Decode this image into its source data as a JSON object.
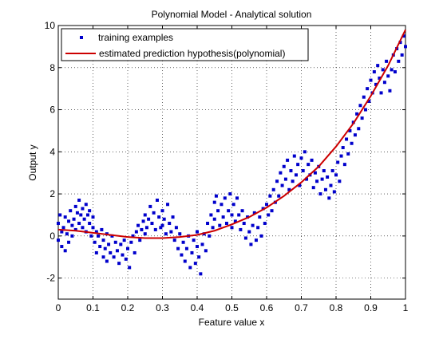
{
  "chart_data": {
    "type": "scatter",
    "title": "Polynomial Model - Analytical solution",
    "xlabel": "Feature value x",
    "ylabel": "Output y",
    "xlim": [
      0,
      1
    ],
    "ylim": [
      -3,
      10
    ],
    "xticks": [
      0,
      0.1,
      0.2,
      0.3,
      0.4,
      0.5,
      0.6,
      0.7,
      0.8,
      0.9,
      1
    ],
    "xtick_labels": [
      "0",
      "0.1",
      "0.2",
      "0.3",
      "0.4",
      "0.5",
      "0.6",
      "0.7",
      "0.8",
      "0.9",
      "1"
    ],
    "yticks": [
      -2,
      0,
      2,
      4,
      6,
      8,
      10
    ],
    "ytick_labels": [
      "-2",
      "0",
      "2",
      "4",
      "6",
      "8",
      "10"
    ],
    "grid": true,
    "legend_position": "top-left",
    "colors": {
      "scatter": "#0000cc",
      "curve": "#cc0000",
      "axis": "#000000"
    },
    "series": [
      {
        "name": "training examples",
        "kind": "scatter",
        "points": [
          [
            0.0,
            0.6
          ],
          [
            0.0,
            -0.2
          ],
          [
            0.005,
            1.0
          ],
          [
            0.01,
            0.2
          ],
          [
            0.01,
            -0.5
          ],
          [
            0.015,
            0.4
          ],
          [
            0.02,
            -0.7
          ],
          [
            0.02,
            0.9
          ],
          [
            0.025,
            0.1
          ],
          [
            0.03,
            0.7
          ],
          [
            0.03,
            -0.3
          ],
          [
            0.035,
            1.2
          ],
          [
            0.04,
            0.5
          ],
          [
            0.04,
            0.0
          ],
          [
            0.045,
            0.8
          ],
          [
            0.05,
            1.4
          ],
          [
            0.05,
            0.3
          ],
          [
            0.055,
            1.1
          ],
          [
            0.06,
            0.6
          ],
          [
            0.06,
            1.7
          ],
          [
            0.065,
            1.0
          ],
          [
            0.07,
            0.4
          ],
          [
            0.07,
            1.3
          ],
          [
            0.075,
            0.8
          ],
          [
            0.08,
            1.5
          ],
          [
            0.08,
            0.2
          ],
          [
            0.085,
            1.0
          ],
          [
            0.09,
            0.6
          ],
          [
            0.09,
            1.2
          ],
          [
            0.095,
            0.0
          ],
          [
            0.1,
            0.4
          ],
          [
            0.1,
            0.9
          ],
          [
            0.105,
            -0.3
          ],
          [
            0.11,
            0.2
          ],
          [
            0.11,
            -0.8
          ],
          [
            0.115,
            0.0
          ],
          [
            0.12,
            -0.5
          ],
          [
            0.125,
            0.3
          ],
          [
            0.13,
            -1.0
          ],
          [
            0.13,
            -0.2
          ],
          [
            0.135,
            -0.6
          ],
          [
            0.14,
            0.1
          ],
          [
            0.14,
            -1.2
          ],
          [
            0.145,
            -0.4
          ],
          [
            0.15,
            -0.8
          ],
          [
            0.155,
            0.0
          ],
          [
            0.16,
            -1.0
          ],
          [
            0.165,
            -0.3
          ],
          [
            0.17,
            -0.7
          ],
          [
            0.175,
            -1.3
          ],
          [
            0.18,
            -0.4
          ],
          [
            0.185,
            -0.9
          ],
          [
            0.19,
            -0.2
          ],
          [
            0.195,
            -1.1
          ],
          [
            0.2,
            -0.6
          ],
          [
            0.205,
            -1.5
          ],
          [
            0.21,
            -0.3
          ],
          [
            0.215,
            0.0
          ],
          [
            0.22,
            -0.8
          ],
          [
            0.225,
            0.2
          ],
          [
            0.23,
            0.5
          ],
          [
            0.235,
            -0.2
          ],
          [
            0.24,
            0.3
          ],
          [
            0.245,
            0.7
          ],
          [
            0.25,
            0.1
          ],
          [
            0.25,
            1.0
          ],
          [
            0.255,
            0.4
          ],
          [
            0.26,
            0.8
          ],
          [
            0.265,
            1.4
          ],
          [
            0.27,
            0.6
          ],
          [
            0.275,
            1.1
          ],
          [
            0.28,
            0.3
          ],
          [
            0.285,
            1.7
          ],
          [
            0.29,
            0.9
          ],
          [
            0.295,
            0.4
          ],
          [
            0.3,
            1.2
          ],
          [
            0.3,
            0.5
          ],
          [
            0.305,
            0.8
          ],
          [
            0.31,
            0.1
          ],
          [
            0.315,
            1.5
          ],
          [
            0.32,
            0.6
          ],
          [
            0.325,
            0.2
          ],
          [
            0.33,
            0.9
          ],
          [
            0.335,
            -0.2
          ],
          [
            0.34,
            0.4
          ],
          [
            0.345,
            -0.6
          ],
          [
            0.35,
            0.1
          ],
          [
            0.355,
            -0.9
          ],
          [
            0.36,
            -0.3
          ],
          [
            0.365,
            -1.2
          ],
          [
            0.37,
            -0.6
          ],
          [
            0.375,
            0.0
          ],
          [
            0.38,
            -1.5
          ],
          [
            0.385,
            -0.8
          ],
          [
            0.39,
            -0.2
          ],
          [
            0.395,
            -1.3
          ],
          [
            0.4,
            -0.5
          ],
          [
            0.4,
            0.2
          ],
          [
            0.405,
            -1.0
          ],
          [
            0.41,
            -1.8
          ],
          [
            0.415,
            -0.4
          ],
          [
            0.42,
            0.1
          ],
          [
            0.425,
            -0.7
          ],
          [
            0.43,
            0.6
          ],
          [
            0.435,
            0.0
          ],
          [
            0.44,
            1.0
          ],
          [
            0.445,
            0.4
          ],
          [
            0.45,
            1.6
          ],
          [
            0.45,
            0.8
          ],
          [
            0.455,
            1.9
          ],
          [
            0.46,
            1.2
          ],
          [
            0.465,
            0.5
          ],
          [
            0.47,
            1.5
          ],
          [
            0.475,
            0.9
          ],
          [
            0.48,
            1.8
          ],
          [
            0.485,
            0.6
          ],
          [
            0.49,
            1.2
          ],
          [
            0.495,
            2.0
          ],
          [
            0.5,
            1.0
          ],
          [
            0.5,
            0.4
          ],
          [
            0.505,
            1.5
          ],
          [
            0.51,
            0.7
          ],
          [
            0.515,
            1.8
          ],
          [
            0.52,
            1.0
          ],
          [
            0.525,
            0.3
          ],
          [
            0.53,
            1.2
          ],
          [
            0.535,
            0.6
          ],
          [
            0.54,
            -0.1
          ],
          [
            0.545,
            0.9
          ],
          [
            0.55,
            0.2
          ],
          [
            0.555,
            -0.4
          ],
          [
            0.56,
            0.5
          ],
          [
            0.565,
            1.1
          ],
          [
            0.57,
            -0.2
          ],
          [
            0.575,
            0.4
          ],
          [
            0.58,
            0.9
          ],
          [
            0.585,
            0.0
          ],
          [
            0.59,
            1.3
          ],
          [
            0.595,
            0.6
          ],
          [
            0.6,
            1.5
          ],
          [
            0.605,
            1.0
          ],
          [
            0.61,
            1.9
          ],
          [
            0.615,
            1.2
          ],
          [
            0.62,
            2.2
          ],
          [
            0.625,
            1.6
          ],
          [
            0.63,
            2.6
          ],
          [
            0.635,
            1.9
          ],
          [
            0.64,
            3.0
          ],
          [
            0.645,
            2.4
          ],
          [
            0.65,
            3.3
          ],
          [
            0.655,
            2.7
          ],
          [
            0.66,
            3.6
          ],
          [
            0.665,
            2.2
          ],
          [
            0.67,
            3.1
          ],
          [
            0.675,
            2.6
          ],
          [
            0.68,
            3.8
          ],
          [
            0.685,
            2.9
          ],
          [
            0.69,
            3.4
          ],
          [
            0.695,
            2.4
          ],
          [
            0.7,
            3.7
          ],
          [
            0.705,
            3.1
          ],
          [
            0.71,
            4.0
          ],
          [
            0.715,
            2.7
          ],
          [
            0.72,
            3.4
          ],
          [
            0.725,
            2.9
          ],
          [
            0.73,
            3.6
          ],
          [
            0.735,
            2.3
          ],
          [
            0.74,
            3.0
          ],
          [
            0.745,
            2.6
          ],
          [
            0.75,
            3.3
          ],
          [
            0.755,
            2.0
          ],
          [
            0.76,
            2.7
          ],
          [
            0.765,
            3.1
          ],
          [
            0.77,
            2.2
          ],
          [
            0.775,
            2.8
          ],
          [
            0.78,
            1.8
          ],
          [
            0.785,
            2.4
          ],
          [
            0.79,
            3.1
          ],
          [
            0.795,
            2.1
          ],
          [
            0.8,
            2.9
          ],
          [
            0.805,
            3.5
          ],
          [
            0.81,
            2.6
          ],
          [
            0.815,
            3.8
          ],
          [
            0.82,
            4.2
          ],
          [
            0.825,
            3.4
          ],
          [
            0.83,
            4.6
          ],
          [
            0.835,
            3.9
          ],
          [
            0.84,
            5.0
          ],
          [
            0.845,
            4.4
          ],
          [
            0.85,
            5.4
          ],
          [
            0.855,
            4.8
          ],
          [
            0.86,
            5.8
          ],
          [
            0.865,
            5.1
          ],
          [
            0.87,
            6.2
          ],
          [
            0.875,
            5.6
          ],
          [
            0.88,
            6.6
          ],
          [
            0.885,
            6.0
          ],
          [
            0.89,
            7.0
          ],
          [
            0.895,
            6.4
          ],
          [
            0.9,
            7.4
          ],
          [
            0.905,
            6.8
          ],
          [
            0.91,
            7.8
          ],
          [
            0.915,
            7.2
          ],
          [
            0.92,
            8.1
          ],
          [
            0.925,
            7.5
          ],
          [
            0.93,
            6.8
          ],
          [
            0.935,
            7.9
          ],
          [
            0.94,
            7.3
          ],
          [
            0.945,
            8.3
          ],
          [
            0.95,
            7.6
          ],
          [
            0.955,
            6.9
          ],
          [
            0.96,
            7.9
          ],
          [
            0.965,
            8.6
          ],
          [
            0.97,
            7.8
          ],
          [
            0.975,
            8.9
          ],
          [
            0.98,
            8.3
          ],
          [
            0.985,
            9.2
          ],
          [
            0.99,
            8.6
          ],
          [
            0.995,
            9.5
          ],
          [
            1.0,
            9.0
          ]
        ]
      },
      {
        "name": "estimated prediction hypothesis(polynomial)",
        "kind": "line",
        "points": [
          [
            0.0,
            0.3
          ],
          [
            0.05,
            0.25
          ],
          [
            0.1,
            0.15
          ],
          [
            0.15,
            0.05
          ],
          [
            0.2,
            -0.05
          ],
          [
            0.25,
            -0.1
          ],
          [
            0.3,
            -0.1
          ],
          [
            0.35,
            -0.05
          ],
          [
            0.4,
            0.05
          ],
          [
            0.45,
            0.25
          ],
          [
            0.5,
            0.55
          ],
          [
            0.55,
            0.9
          ],
          [
            0.6,
            1.35
          ],
          [
            0.65,
            1.9
          ],
          [
            0.7,
            2.55
          ],
          [
            0.75,
            3.3
          ],
          [
            0.8,
            4.25
          ],
          [
            0.85,
            5.35
          ],
          [
            0.9,
            6.65
          ],
          [
            0.95,
            8.1
          ],
          [
            1.0,
            9.8
          ]
        ]
      }
    ]
  }
}
